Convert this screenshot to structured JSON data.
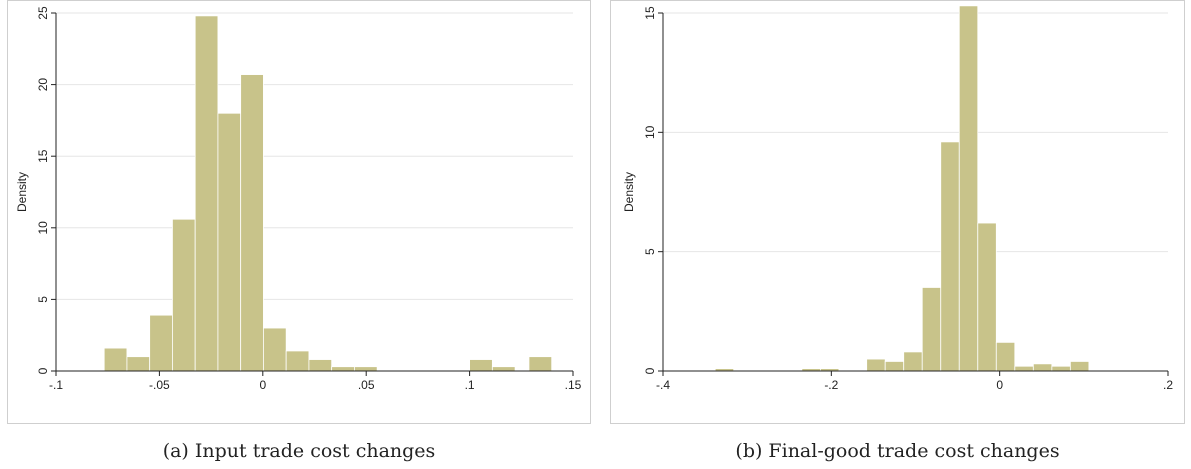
{
  "chart_data": [
    {
      "type": "bar",
      "caption": "(a) Input trade cost changes",
      "ylabel": "Density",
      "xlabel": "",
      "xlim": [
        -0.1,
        0.15
      ],
      "ylim": [
        0,
        25
      ],
      "xticks": [
        {
          "v": -0.1,
          "label": "-.1"
        },
        {
          "v": -0.05,
          "label": "-.05"
        },
        {
          "v": 0,
          "label": "0"
        },
        {
          "v": 0.05,
          "label": ".05"
        },
        {
          "v": 0.1,
          "label": ".1"
        },
        {
          "v": 0.15,
          "label": ".15"
        }
      ],
      "yticks": [
        {
          "v": 0,
          "label": "0"
        },
        {
          "v": 5,
          "label": "5"
        },
        {
          "v": 10,
          "label": "10"
        },
        {
          "v": 15,
          "label": "15"
        },
        {
          "v": 20,
          "label": "20"
        },
        {
          "v": 25,
          "label": "25"
        }
      ],
      "grid": true,
      "bar_color": "#c8c38a",
      "bins": [
        {
          "x0": -0.0767,
          "x1": -0.0657,
          "y": 1.6
        },
        {
          "x0": -0.0657,
          "x1": -0.0547,
          "y": 1.0
        },
        {
          "x0": -0.0547,
          "x1": -0.0437,
          "y": 3.9
        },
        {
          "x0": -0.0437,
          "x1": -0.0327,
          "y": 10.6
        },
        {
          "x0": -0.0327,
          "x1": -0.0217,
          "y": 24.8
        },
        {
          "x0": -0.0217,
          "x1": -0.0107,
          "y": 18.0
        },
        {
          "x0": -0.0107,
          "x1": 0.0003,
          "y": 20.7
        },
        {
          "x0": 0.0003,
          "x1": 0.0113,
          "y": 3.0
        },
        {
          "x0": 0.0113,
          "x1": 0.0223,
          "y": 1.4
        },
        {
          "x0": 0.0223,
          "x1": 0.0333,
          "y": 0.8
        },
        {
          "x0": 0.0333,
          "x1": 0.0443,
          "y": 0.3
        },
        {
          "x0": 0.0443,
          "x1": 0.0553,
          "y": 0.3
        },
        {
          "x0": 0.1,
          "x1": 0.111,
          "y": 0.8
        },
        {
          "x0": 0.111,
          "x1": 0.122,
          "y": 0.3
        },
        {
          "x0": 0.1287,
          "x1": 0.1397,
          "y": 1.0
        }
      ]
    },
    {
      "type": "bar",
      "caption": "(b) Final-good trade cost changes",
      "ylabel": "Density",
      "xlabel": "",
      "xlim": [
        -0.4,
        0.2
      ],
      "ylim": [
        0,
        15
      ],
      "xticks": [
        {
          "v": -0.4,
          "label": "-.4"
        },
        {
          "v": -0.2,
          "label": "-.2"
        },
        {
          "v": 0,
          "label": "0"
        },
        {
          "v": 0.2,
          "label": ".2"
        }
      ],
      "yticks": [
        {
          "v": 0,
          "label": "0"
        },
        {
          "v": 5,
          "label": "5"
        },
        {
          "v": 10,
          "label": "10"
        },
        {
          "v": 15,
          "label": "15"
        }
      ],
      "grid": true,
      "bar_color": "#c8c38a",
      "bins": [
        {
          "x0": -0.338,
          "x1": -0.316,
          "y": 0.1
        },
        {
          "x0": -0.235,
          "x1": -0.213,
          "y": 0.1
        },
        {
          "x0": -0.213,
          "x1": -0.191,
          "y": 0.1
        },
        {
          "x0": -0.158,
          "x1": -0.136,
          "y": 0.5
        },
        {
          "x0": -0.136,
          "x1": -0.114,
          "y": 0.4
        },
        {
          "x0": -0.114,
          "x1": -0.092,
          "y": 0.8
        },
        {
          "x0": -0.092,
          "x1": -0.07,
          "y": 3.5
        },
        {
          "x0": -0.07,
          "x1": -0.048,
          "y": 9.6
        },
        {
          "x0": -0.048,
          "x1": -0.026,
          "y": 15.3
        },
        {
          "x0": -0.026,
          "x1": -0.004,
          "y": 6.2
        },
        {
          "x0": -0.004,
          "x1": 0.018,
          "y": 1.2
        },
        {
          "x0": 0.018,
          "x1": 0.04,
          "y": 0.2
        },
        {
          "x0": 0.04,
          "x1": 0.062,
          "y": 0.3
        },
        {
          "x0": 0.062,
          "x1": 0.084,
          "y": 0.2
        },
        {
          "x0": 0.084,
          "x1": 0.106,
          "y": 0.4
        }
      ]
    }
  ]
}
